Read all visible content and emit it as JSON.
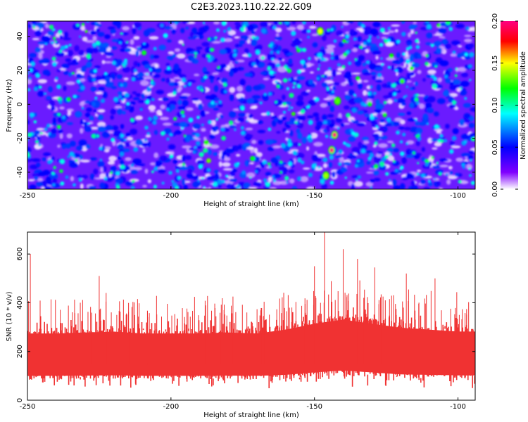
{
  "title": "C2E3.2023.110.22.22.G09",
  "chart_data": [
    {
      "type": "heatmap",
      "xlabel": "Height of straight line (km)",
      "ylabel": "Frequency (Hz)",
      "xlim": [
        -250,
        -94
      ],
      "ylim": [
        -50,
        49
      ],
      "x_ticks": [
        -250,
        -200,
        -150,
        -100
      ],
      "y_ticks": [
        -40,
        -20,
        0,
        20,
        40
      ],
      "colorbar": {
        "label": "Normalized spectral amplitude",
        "range": [
          0.0,
          0.2
        ],
        "ticks": [
          "0.00",
          "0.05",
          "0.10",
          "0.15",
          "0.20"
        ],
        "colors": [
          "#ffffff",
          "#8000ff",
          "#0000ff",
          "#00ffff",
          "#00ff00",
          "#ffff00",
          "#ff0000",
          "#ff0080"
        ]
      },
      "features": [
        {
          "x": -143,
          "y": -18,
          "value": 0.2
        },
        {
          "x": -144,
          "y": -27,
          "value": 0.2
        },
        {
          "x": -148,
          "y": 43,
          "value": 0.15
        },
        {
          "x": -146,
          "y": -42,
          "value": 0.14
        },
        {
          "x": -142,
          "y": 2,
          "value": 0.13
        }
      ]
    },
    {
      "type": "line",
      "xlabel": "Height of straight line (km)",
      "ylabel": "SNR (10 * v/v)",
      "xlim": [
        -250,
        -94
      ],
      "ylim": [
        0,
        690
      ],
      "x_ticks": [
        -250,
        -200,
        -150,
        -100
      ],
      "y_ticks": [
        0,
        200,
        400,
        600
      ],
      "color": "#f03232",
      "baseline": 150,
      "envelope": [
        {
          "x": -250,
          "low": 40,
          "high": 340
        },
        {
          "x": -240,
          "low": 40,
          "high": 340
        },
        {
          "x": -230,
          "low": 40,
          "high": 345
        },
        {
          "x": -220,
          "low": 40,
          "high": 350
        },
        {
          "x": -210,
          "low": 40,
          "high": 340
        },
        {
          "x": -200,
          "low": 40,
          "high": 340
        },
        {
          "x": -190,
          "low": 40,
          "high": 340
        },
        {
          "x": -180,
          "low": 40,
          "high": 345
        },
        {
          "x": -170,
          "low": 40,
          "high": 340
        },
        {
          "x": -160,
          "low": 40,
          "high": 360
        },
        {
          "x": -150,
          "low": 45,
          "high": 390
        },
        {
          "x": -140,
          "low": 50,
          "high": 410
        },
        {
          "x": -130,
          "low": 45,
          "high": 390
        },
        {
          "x": -120,
          "low": 40,
          "high": 370
        },
        {
          "x": -110,
          "low": 40,
          "high": 360
        },
        {
          "x": -100,
          "low": 40,
          "high": 350
        },
        {
          "x": -94,
          "low": 40,
          "high": 350
        }
      ],
      "peaks": [
        {
          "x": -249,
          "y": 600
        },
        {
          "x": -225,
          "y": 510
        },
        {
          "x": -150,
          "y": 550
        },
        {
          "x": -146.5,
          "y": 690
        },
        {
          "x": -140,
          "y": 620
        },
        {
          "x": -135,
          "y": 580
        },
        {
          "x": -129,
          "y": 545
        },
        {
          "x": -118,
          "y": 520
        },
        {
          "x": -108,
          "y": 500
        }
      ]
    }
  ]
}
